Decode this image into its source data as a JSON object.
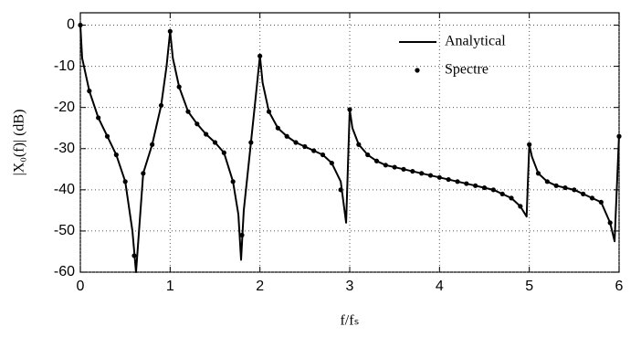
{
  "chart_data": {
    "type": "line",
    "xlabel": "f/fₛ",
    "ylabel": "|X₀(f)| (dB)",
    "xlim": [
      0,
      6
    ],
    "ylim": [
      -60,
      3
    ],
    "xticks": [
      0,
      1,
      2,
      3,
      4,
      5,
      6
    ],
    "yticks": [
      0,
      -10,
      -20,
      -30,
      -40,
      -50,
      -60
    ],
    "grid": true,
    "legend": "upper right",
    "series": [
      {
        "name": "Analytical",
        "color": "#000000",
        "mode": "line",
        "x": [
          0,
          0.02,
          0.1,
          0.2,
          0.3,
          0.4,
          0.5,
          0.58,
          0.62,
          0.66,
          0.7,
          0.8,
          0.9,
          0.96,
          1.0,
          1.03,
          1.1,
          1.2,
          1.3,
          1.4,
          1.5,
          1.6,
          1.7,
          1.76,
          1.79,
          1.82,
          1.9,
          1.96,
          2.0,
          2.03,
          2.1,
          2.2,
          2.3,
          2.4,
          2.5,
          2.6,
          2.7,
          2.8,
          2.9,
          2.96,
          3.0,
          3.03,
          3.1,
          3.2,
          3.3,
          3.4,
          3.5,
          3.6,
          3.7,
          3.8,
          3.9,
          4.0,
          4.1,
          4.2,
          4.3,
          4.4,
          4.5,
          4.6,
          4.7,
          4.8,
          4.9,
          4.97,
          5.0,
          5.03,
          5.1,
          5.2,
          5.3,
          5.4,
          5.5,
          5.6,
          5.7,
          5.8,
          5.9,
          5.95,
          6.0
        ],
        "values": [
          0,
          -8,
          -16,
          -22.5,
          -27,
          -31.5,
          -38,
          -50,
          -60,
          -48,
          -36,
          -29,
          -19.5,
          -10,
          -1.5,
          -8,
          -15,
          -21,
          -24,
          -26.5,
          -28.5,
          -31,
          -38,
          -46,
          -57,
          -45,
          -28.5,
          -16,
          -7.5,
          -14,
          -21,
          -25,
          -27,
          -28.5,
          -29.5,
          -30.5,
          -31.5,
          -33.5,
          -38,
          -48,
          -20.5,
          -25,
          -29,
          -31.5,
          -33,
          -34,
          -34.5,
          -35,
          -35.5,
          -36,
          -36.5,
          -37,
          -37.5,
          -38,
          -38.5,
          -39,
          -39.5,
          -40,
          -41,
          -42,
          -44,
          -46.5,
          -29,
          -32,
          -36,
          -38,
          -39,
          -39.5,
          -40,
          -41,
          -42,
          -43,
          -48,
          -52.5,
          -26.5
        ]
      },
      {
        "name": "Spectre",
        "color": "#000000",
        "mode": "markers",
        "x": [
          0,
          0.1,
          0.2,
          0.3,
          0.4,
          0.5,
          0.6,
          0.7,
          0.8,
          0.9,
          1.0,
          1.1,
          1.2,
          1.3,
          1.4,
          1.5,
          1.6,
          1.7,
          1.8,
          1.9,
          2.0,
          2.1,
          2.2,
          2.3,
          2.4,
          2.5,
          2.6,
          2.7,
          2.8,
          2.9,
          3.0,
          3.1,
          3.2,
          3.3,
          3.4,
          3.5,
          3.6,
          3.7,
          3.8,
          3.9,
          4.0,
          4.1,
          4.2,
          4.3,
          4.4,
          4.5,
          4.6,
          4.7,
          4.8,
          4.9,
          5.0,
          5.1,
          5.2,
          5.3,
          5.4,
          5.5,
          5.6,
          5.7,
          5.8,
          5.9,
          6.0
        ],
        "values": [
          0,
          -16,
          -22.5,
          -27,
          -31.5,
          -38,
          -56,
          -36,
          -29,
          -19.5,
          -1.5,
          -15,
          -21,
          -24,
          -26.5,
          -28.5,
          -31,
          -38,
          -51,
          -28.5,
          -7.5,
          -21,
          -25,
          -27,
          -28.5,
          -29.5,
          -30.5,
          -31.5,
          -33.5,
          -40,
          -20.5,
          -29,
          -31.5,
          -33,
          -34,
          -34.5,
          -35,
          -35.5,
          -36,
          -36.5,
          -37,
          -37.5,
          -38,
          -38.5,
          -39,
          -39.5,
          -40,
          -41,
          -42,
          -44,
          -29,
          -36,
          -38,
          -39,
          -39.5,
          -40,
          -41,
          -42,
          -43,
          -48,
          -27
        ]
      }
    ]
  }
}
